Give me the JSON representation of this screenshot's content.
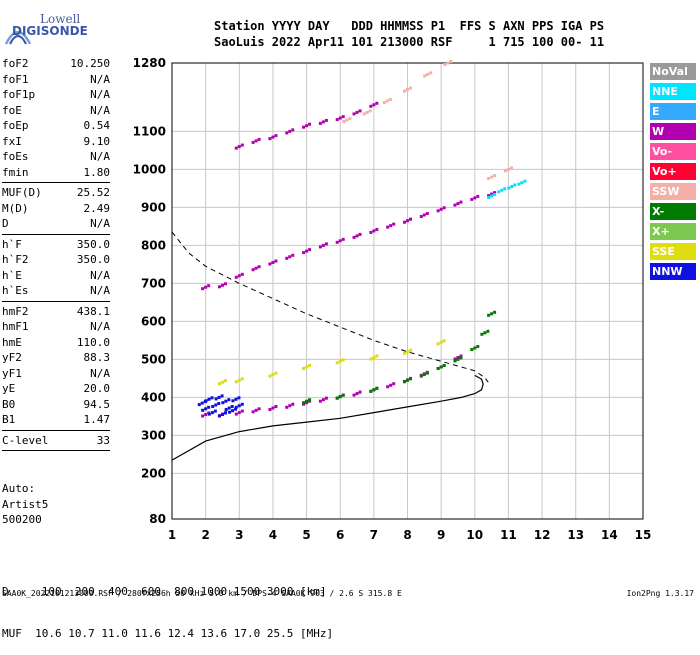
{
  "logo": {
    "line1": "Lowell",
    "line2": "DIGISONDE"
  },
  "header": {
    "line1": "Station YYYY DAY   DDD HHMMSS P1  FFS S AXN PPS IGA PS",
    "line2": "SaoLuis 2022 Apr11 101 213000 RSF     1 715 100 00- 11"
  },
  "params": [
    {
      "label": "foF2",
      "value": "10.250"
    },
    {
      "label": "foF1",
      "value": "N/A"
    },
    {
      "label": "foF1p",
      "value": "N/A"
    },
    {
      "label": "foE",
      "value": "N/A"
    },
    {
      "label": "foEp",
      "value": "0.54"
    },
    {
      "label": "fxI",
      "value": "9.10"
    },
    {
      "label": "foEs",
      "value": "N/A"
    },
    {
      "label": "fmin",
      "value": "1.80"
    },
    {
      "sep": true
    },
    {
      "label": "MUF(D)",
      "value": "25.52"
    },
    {
      "label": "M(D)",
      "value": "2.49"
    },
    {
      "label": "D",
      "value": "N/A"
    },
    {
      "sep": true
    },
    {
      "label": "h`F",
      "value": "350.0"
    },
    {
      "label": "h`F2",
      "value": "350.0"
    },
    {
      "label": "h`E",
      "value": "N/A"
    },
    {
      "label": "h`Es",
      "value": "N/A"
    },
    {
      "sep": true
    },
    {
      "label": "hmF2",
      "value": "438.1"
    },
    {
      "label": "hmF1",
      "value": "N/A"
    },
    {
      "label": "hmE",
      "value": "110.0"
    },
    {
      "label": "yF2",
      "value": "88.3"
    },
    {
      "label": "yF1",
      "value": "N/A"
    },
    {
      "label": "yE",
      "value": "20.0"
    },
    {
      "label": "B0",
      "value": "94.5"
    },
    {
      "label": "B1",
      "value": "1.47"
    },
    {
      "sep": true
    },
    {
      "label": "C-level",
      "value": "33"
    },
    {
      "sep": true
    }
  ],
  "auto": {
    "line1": "Auto:",
    "line2": "Artist5",
    "line3": "500200"
  },
  "legend": [
    {
      "label": "NoVal",
      "color": "#9a9a9a"
    },
    {
      "label": "NNE",
      "color": "#00e5ff"
    },
    {
      "label": "E",
      "color": "#33aaff"
    },
    {
      "label": "W",
      "color": "#b000b0"
    },
    {
      "label": "Vo-",
      "color": "#ff4fa0"
    },
    {
      "label": "Vo+",
      "color": "#ff0033"
    },
    {
      "label": "SSW",
      "color": "#f4b0a8"
    },
    {
      "label": "X-",
      "color": "#007a00"
    },
    {
      "label": "X+",
      "color": "#7cc850"
    },
    {
      "label": "SSE",
      "color": "#dddd10"
    },
    {
      "label": "NNW",
      "color": "#1010e0"
    }
  ],
  "bottom": {
    "line1": "D     100  200  400  600  800 1000 1500 3000 [km]",
    "line2": "MUF  10.6 10.7 11.0 11.6 12.4 13.6 17.0 25.5 [MHz]"
  },
  "footer": {
    "left": "SAA0K_2022101213000.RSF / 280fx256h 50 kHz 5.0 km / DPS-4 SAA0K 903 / 2.6 S 315.8 E",
    "right": "Ion2Png 1.3.17"
  },
  "chart_data": {
    "type": "scatter",
    "xlim": [
      1,
      15
    ],
    "ylim": [
      80,
      1280
    ],
    "x_ticks": [
      1,
      2,
      3,
      4,
      5,
      6,
      7,
      8,
      9,
      10,
      11,
      12,
      13,
      14,
      15
    ],
    "y_ticks": [
      80,
      200,
      300,
      400,
      500,
      600,
      700,
      800,
      900,
      1000,
      1100,
      1280
    ],
    "grid": true,
    "series": [
      {
        "name": "W",
        "color": "#b000b0",
        "role": "o_trace_F",
        "x": [
          2.0,
          2.5,
          3.0,
          3.5,
          4.0,
          4.5,
          5.0,
          5.5,
          6.0,
          6.5,
          7.0,
          7.5,
          8.0,
          8.5,
          9.0,
          9.5
        ],
        "y": [
          355,
          356,
          360,
          366,
          372,
          378,
          386,
          394,
          402,
          410,
          420,
          432,
          446,
          462,
          480,
          505
        ]
      },
      {
        "name": "W",
        "color": "#b000b0",
        "role": "o_trace_2F",
        "x": [
          2.0,
          2.5,
          3.0,
          3.5,
          4.0,
          4.5,
          5.0,
          5.5,
          6.0,
          6.5,
          7.0,
          7.5,
          8.0,
          8.5,
          9.0,
          9.5,
          10.0,
          10.5
        ],
        "y": [
          690,
          695,
          720,
          740,
          755,
          770,
          785,
          800,
          812,
          825,
          838,
          852,
          865,
          880,
          895,
          910,
          925,
          935
        ]
      },
      {
        "name": "W",
        "color": "#b000b0",
        "role": "o_trace_3F",
        "x": [
          3.0,
          3.5,
          4.0,
          4.5,
          5.0,
          5.5,
          6.0,
          6.5,
          7.0
        ],
        "y": [
          1060,
          1075,
          1085,
          1100,
          1115,
          1125,
          1135,
          1150,
          1170
        ]
      },
      {
        "name": "X-",
        "color": "#007a00",
        "role": "x_trace_F",
        "x": [
          5.0,
          6.0,
          7.0,
          8.0,
          8.5,
          9.0,
          9.5,
          10.0,
          10.3,
          10.5
        ],
        "y": [
          390,
          402,
          420,
          445,
          460,
          480,
          500,
          530,
          570,
          620
        ]
      },
      {
        "name": "SSE",
        "color": "#dddd10",
        "role": "oblique_F",
        "x": [
          2.5,
          3.0,
          4.0,
          5.0,
          6.0,
          7.0,
          8.0,
          9.0
        ],
        "y": [
          440,
          445,
          460,
          480,
          495,
          505,
          520,
          545
        ]
      },
      {
        "name": "NNW",
        "color": "#1010e0",
        "role": "low_echoes",
        "x": [
          1.9,
          2.0,
          2.1,
          2.2,
          2.3,
          2.4,
          2.5,
          2.6,
          2.7,
          2.8,
          2.9,
          3.0
        ],
        "y": [
          385,
          370,
          395,
          360,
          380,
          400,
          355,
          390,
          372,
          365,
          395,
          378
        ]
      },
      {
        "name": "SSW",
        "color": "#f4b0a8",
        "role": "upper_echoes",
        "x": [
          6.2,
          6.8,
          7.4,
          8.0,
          8.6,
          9.2,
          10.5,
          11.0
        ],
        "y": [
          1130,
          1150,
          1180,
          1210,
          1250,
          1280,
          980,
          1000
        ]
      },
      {
        "name": "NNE",
        "color": "#00e5ff",
        "role": "upper_echoes",
        "x": [
          10.5,
          10.8,
          11.1,
          11.4
        ],
        "y": [
          930,
          945,
          955,
          965
        ]
      }
    ],
    "profile_solid": {
      "x": [
        1.0,
        2.0,
        3.0,
        4.0,
        5.0,
        6.0,
        7.0,
        8.0,
        9.0,
        9.6,
        10.0,
        10.2,
        10.25,
        10.2,
        10.0
      ],
      "y": [
        235,
        285,
        310,
        325,
        335,
        345,
        360,
        375,
        390,
        400,
        410,
        420,
        435,
        448,
        458
      ]
    },
    "profile_dashed": {
      "x": [
        1.0,
        1.5,
        2.0,
        3.0,
        4.0,
        5.0,
        6.0,
        7.0,
        8.0,
        9.0,
        10.0,
        10.3,
        10.4
      ],
      "y": [
        835,
        780,
        745,
        700,
        660,
        620,
        585,
        550,
        520,
        495,
        470,
        452,
        440
      ]
    }
  }
}
